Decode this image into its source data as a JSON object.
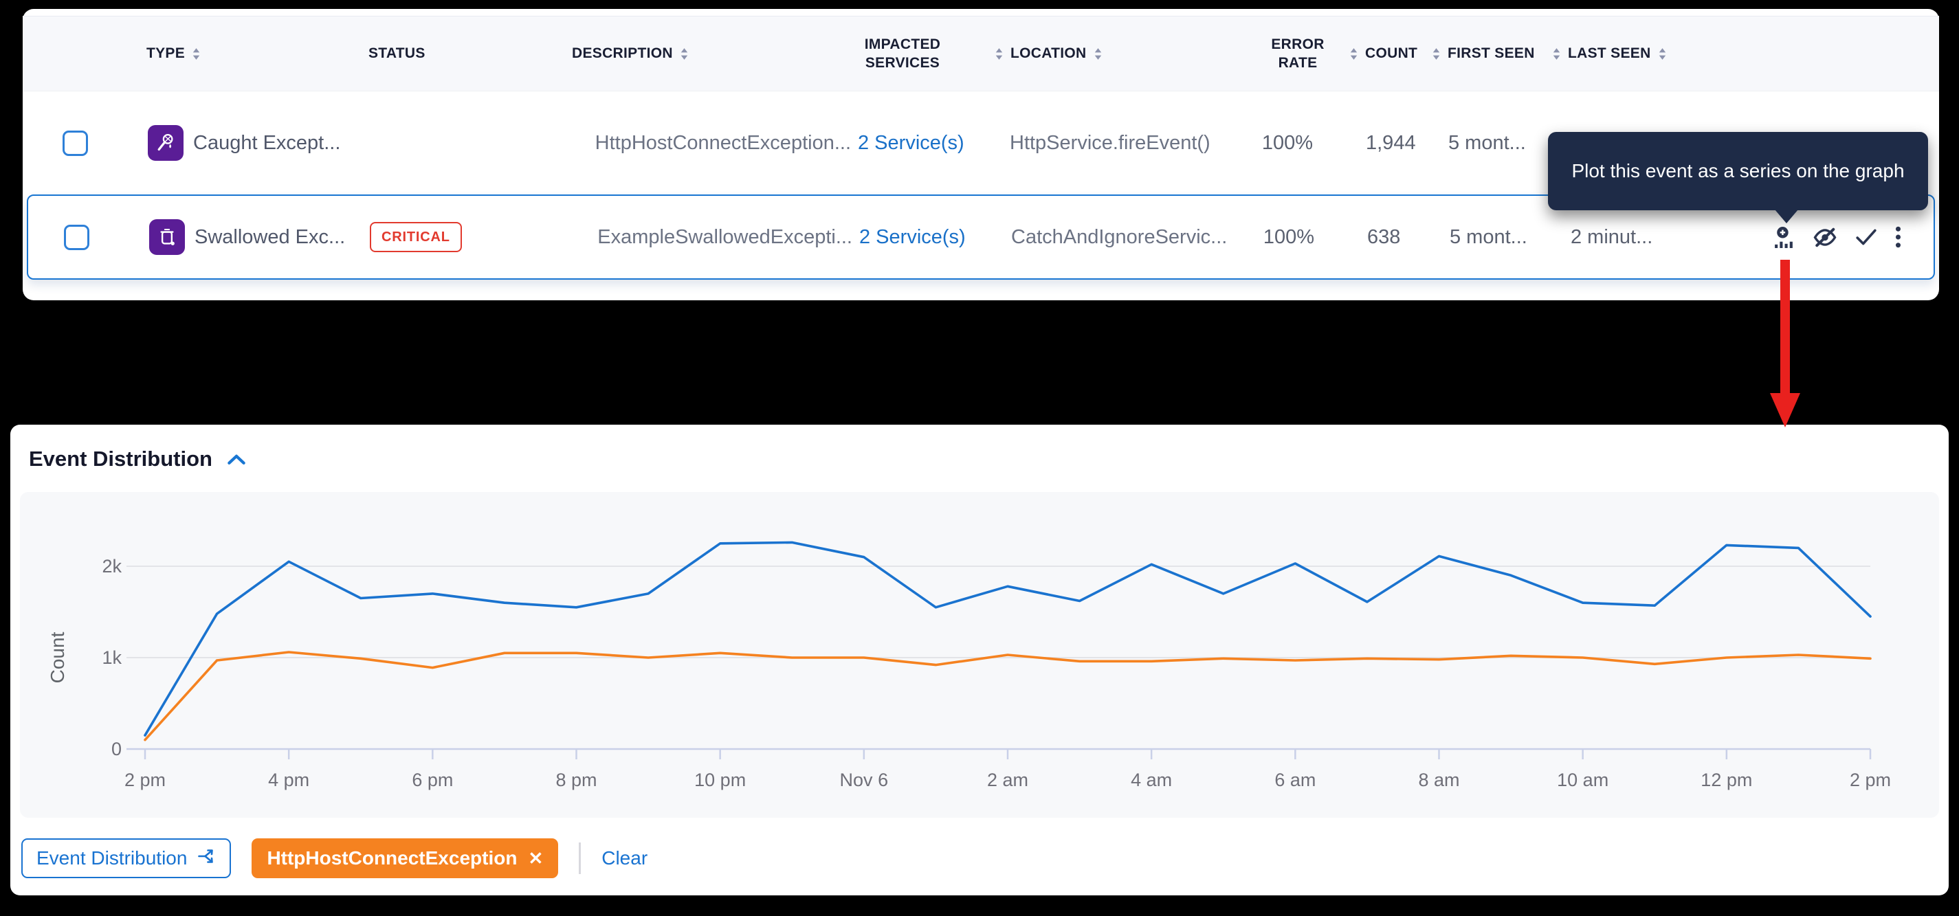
{
  "table": {
    "headers": {
      "type": "TYPE",
      "status": "STATUS",
      "description": "DESCRIPTION",
      "impacted": "IMPACTED SERVICES",
      "location": "LOCATION",
      "error_rate": "ERROR RATE",
      "count": "COUNT",
      "first_seen": "FIRST SEEN",
      "last_seen": "LAST SEEN"
    },
    "rows": [
      {
        "type_label": "Caught Except...",
        "type_icon": "caught-exception-net-icon",
        "status": "",
        "description": "HttpHostConnectException...",
        "impacted": "2 Service(s)",
        "location": "HttpService.fireEvent()",
        "error_rate": "100%",
        "count": "1,944",
        "first_seen": "5 mont...",
        "last_seen": ""
      },
      {
        "type_label": "Swallowed Exc...",
        "type_icon": "swallowed-exception-jar-icon",
        "status": "CRITICAL",
        "description": "ExampleSwallowedExcepti...",
        "impacted": "2 Service(s)",
        "location": "CatchAndIgnoreServic...",
        "error_rate": "100%",
        "count": "638",
        "first_seen": "5 mont...",
        "last_seen": "2 minut..."
      }
    ]
  },
  "tooltip": {
    "text": "Plot this event as a series on the graph"
  },
  "chart_section": {
    "title": "Event Distribution"
  },
  "legend": {
    "series_button_label": "Event Distribution",
    "chip_label": "HttpHostConnectException",
    "chip_close": "✕",
    "clear_label": "Clear"
  },
  "colors": {
    "selected_row_border": "#1976d2",
    "critical_red": "#e23a2e",
    "type_icon_purple": "#5a1d96",
    "tooltip_bg": "#1e2b47",
    "arrow_red": "#e9211e",
    "link_blue": "#1970c8",
    "chip_orange": "#f58220",
    "line_blue": "#1a73cf",
    "line_orange": "#f58220"
  },
  "chart_data": {
    "type": "line",
    "title": "Event Distribution",
    "xlabel": "",
    "ylabel": "Count",
    "x": [
      "2 pm",
      "3 pm",
      "4 pm",
      "5 pm",
      "6 pm",
      "7 pm",
      "8 pm",
      "9 pm",
      "10 pm",
      "11 pm",
      "12 am",
      "1 am",
      "2 am",
      "3 am",
      "4 am",
      "5 am",
      "6 am",
      "7 am",
      "8 am",
      "9 am",
      "10 am",
      "11 am",
      "12 pm",
      "1 pm",
      "2 pm"
    ],
    "x_tick_labels": [
      "2 pm",
      "4 pm",
      "6 pm",
      "8 pm",
      "10 pm",
      "Nov 6",
      "2 am",
      "4 am",
      "6 am",
      "8 am",
      "10 am",
      "12 pm",
      "2 pm"
    ],
    "tick_every": 2,
    "y_tick_labels": [
      "0",
      "1k",
      "2k"
    ],
    "y_tick_values": [
      0,
      1000,
      2000
    ],
    "ylim": [
      0,
      2450
    ],
    "grid": "horizontal",
    "legend_position": "bottom",
    "series": [
      {
        "name": "Event Distribution",
        "color": "#1a73cf",
        "values": [
          150,
          1480,
          2050,
          1650,
          1700,
          1600,
          1550,
          1700,
          2250,
          2260,
          2100,
          1550,
          1780,
          1620,
          2020,
          1700,
          2030,
          1610,
          2110,
          1900,
          1600,
          1570,
          2230,
          2200,
          1450
        ]
      },
      {
        "name": "HttpHostConnectException",
        "color": "#f58220",
        "values": [
          100,
          970,
          1060,
          990,
          890,
          1050,
          1050,
          1000,
          1050,
          1000,
          1000,
          920,
          1030,
          960,
          960,
          990,
          970,
          990,
          980,
          1020,
          1000,
          930,
          1000,
          1030,
          990
        ]
      }
    ]
  }
}
